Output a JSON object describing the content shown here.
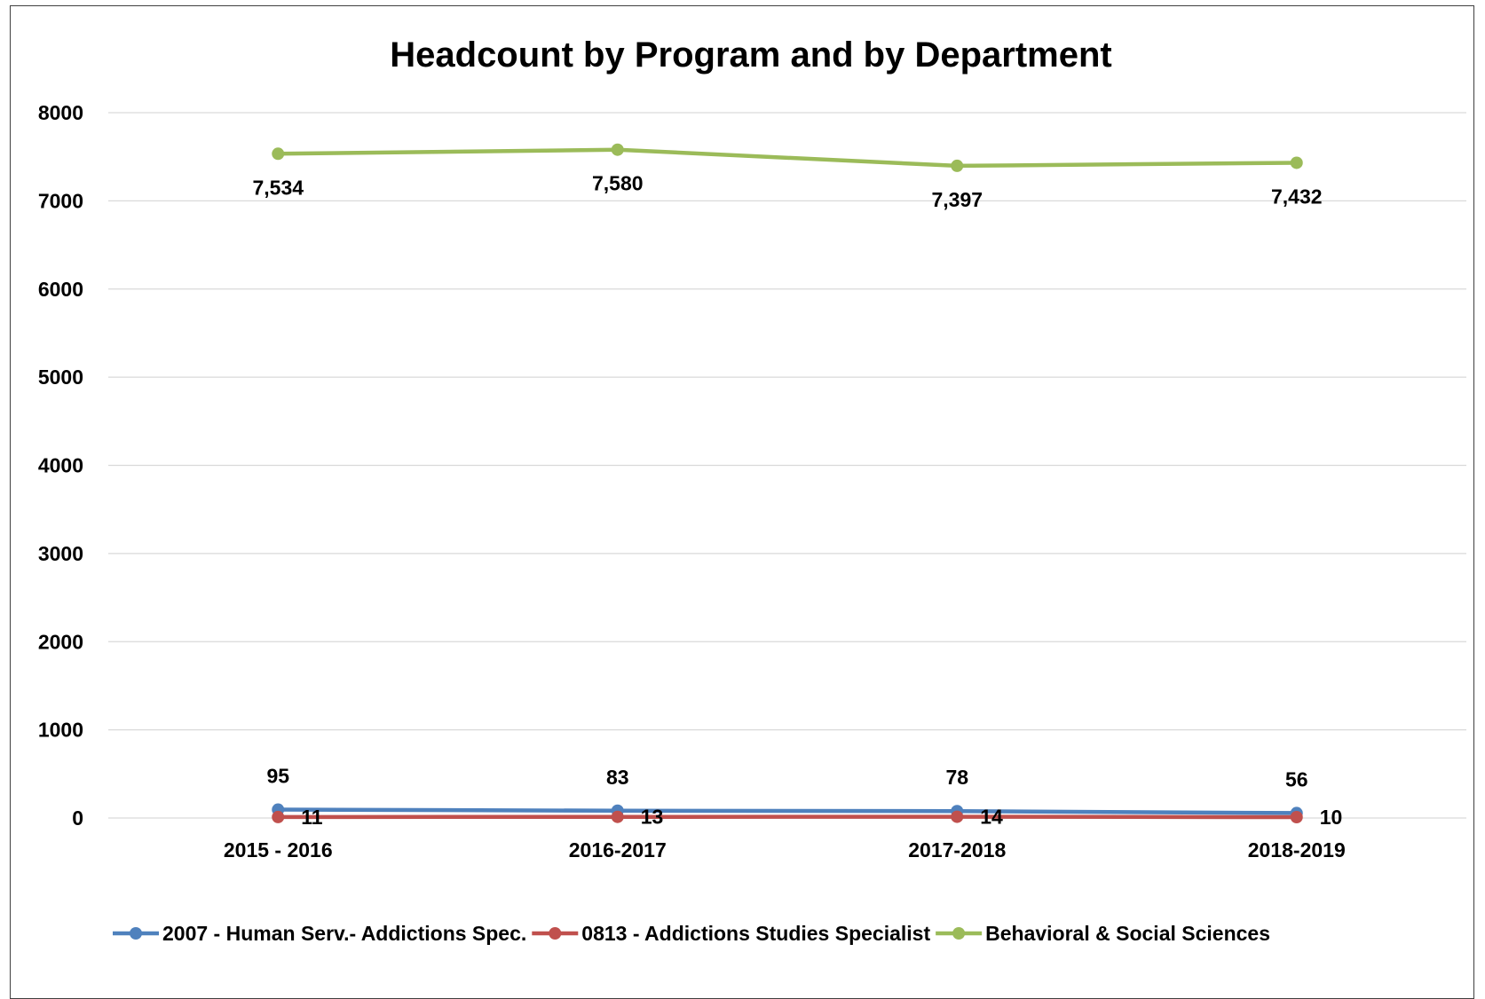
{
  "chart_data": {
    "type": "line",
    "title": "Headcount by Program and by Department",
    "xlabel": "",
    "ylabel": "",
    "categories": [
      "2015 - 2016",
      "2016-2017",
      "2017-2018",
      "2018-2019"
    ],
    "ylim": [
      0,
      8000
    ],
    "yticks": [
      0,
      1000,
      2000,
      3000,
      4000,
      5000,
      6000,
      7000,
      8000
    ],
    "grid": true,
    "legend_position": "bottom",
    "series": [
      {
        "name": "2007 - Human Serv.- Addictions Spec.",
        "color": "#4f81bd",
        "values": [
          95,
          83,
          78,
          56
        ],
        "labels": [
          "95",
          "83",
          "78",
          "56"
        ],
        "label_position": "above"
      },
      {
        "name": "0813 - Addictions Studies Specialist",
        "color": "#c0504d",
        "values": [
          11,
          13,
          14,
          10
        ],
        "labels": [
          "11",
          "13",
          "14",
          "10"
        ],
        "label_position": "right"
      },
      {
        "name": "Behavioral & Social Sciences",
        "color": "#9bbb59",
        "values": [
          7534,
          7580,
          7397,
          7432
        ],
        "labels": [
          "7,534",
          "7,580",
          "7,397",
          "7,432"
        ],
        "label_position": "below"
      }
    ]
  }
}
